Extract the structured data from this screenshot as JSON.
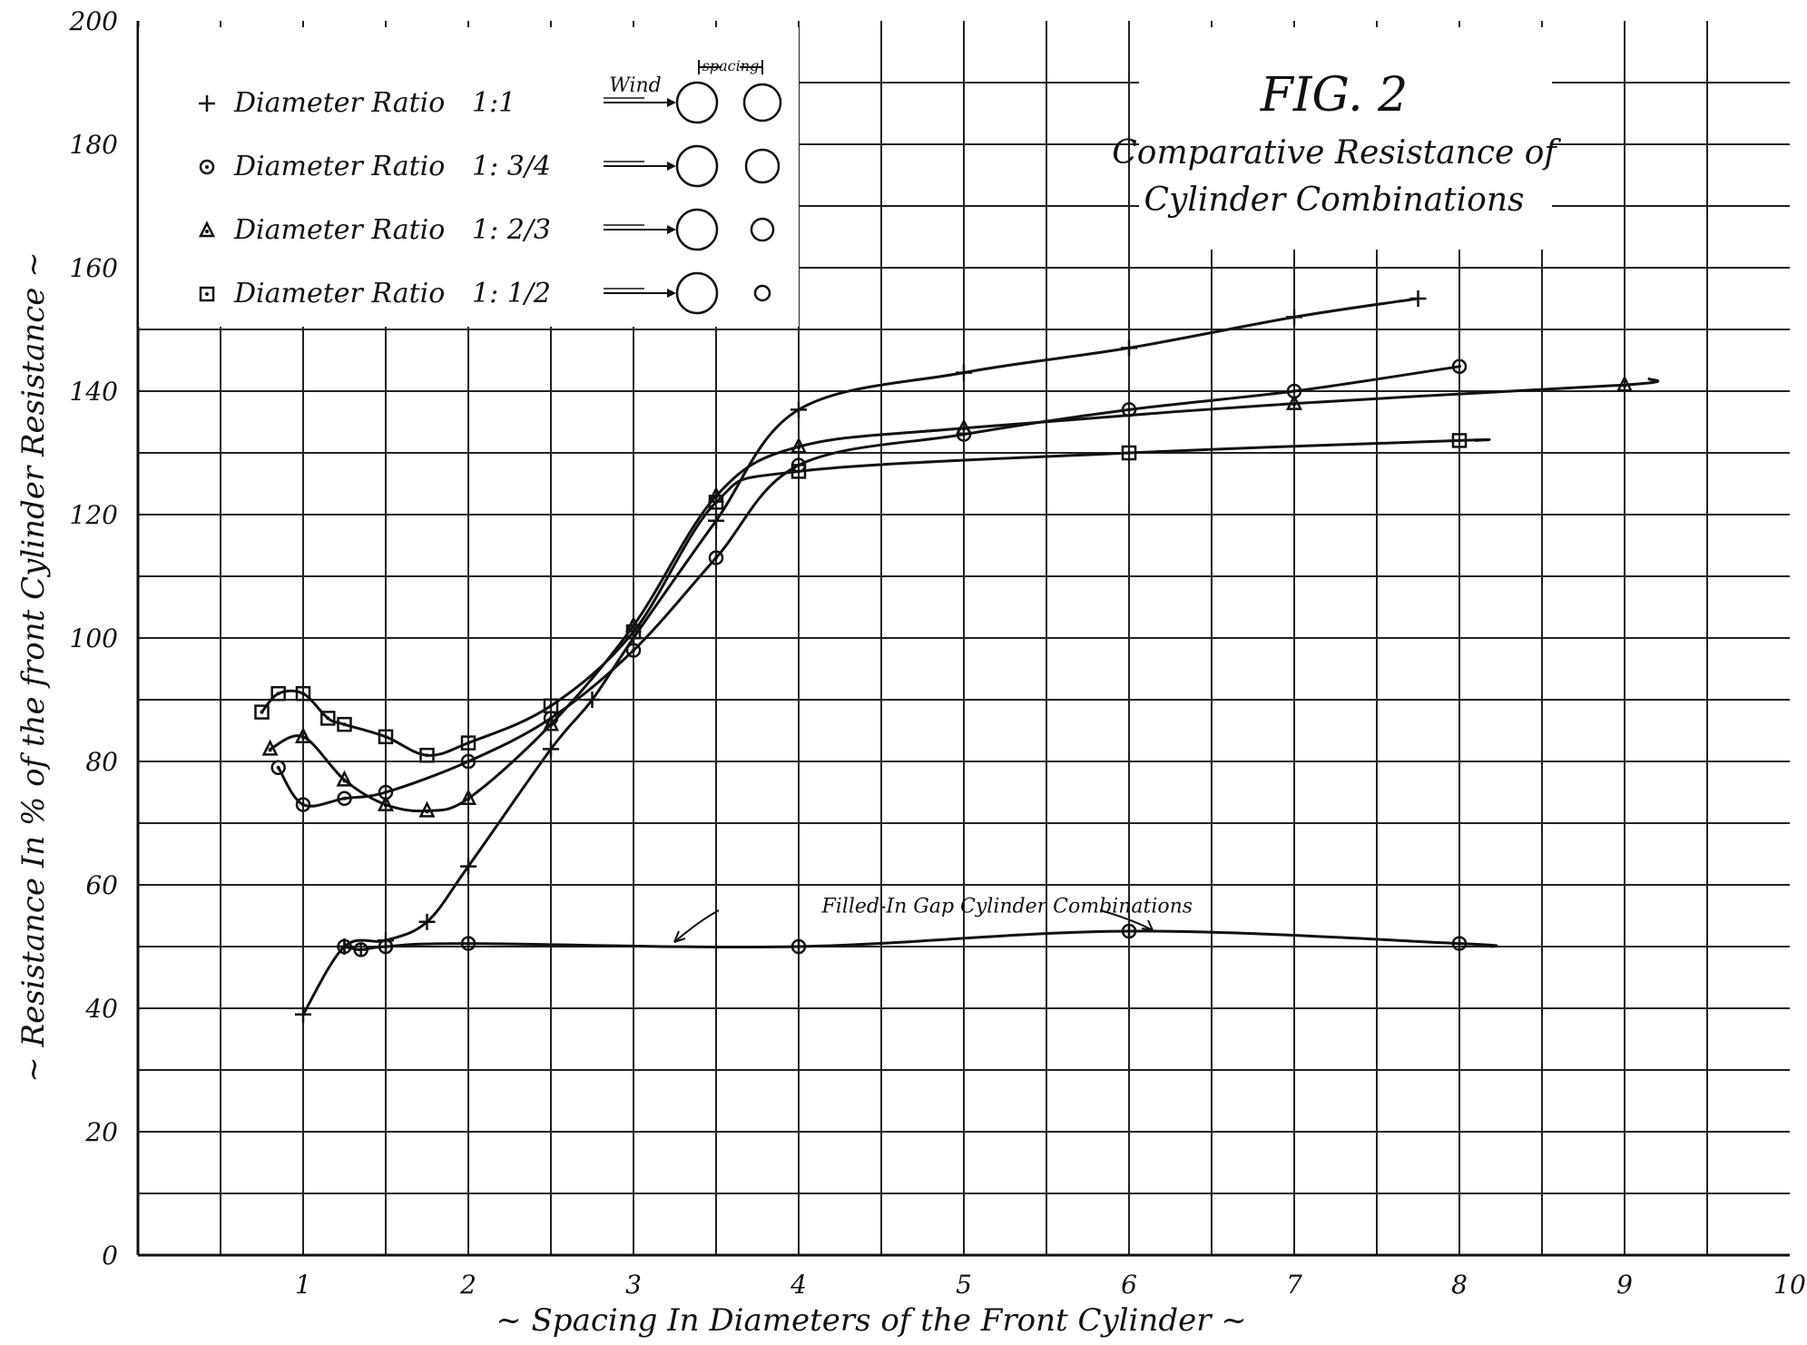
{
  "chart_data": {
    "type": "line",
    "title": "FIG. 2",
    "subtitle_lines": [
      "Comparative Resistance of",
      "Cylinder Combinations"
    ],
    "xlabel": "~ Spacing In Diameters of the Front Cylinder ~",
    "ylabel": "~ Resistance In % of the front Cylinder Resistance ~",
    "xlim": [
      0,
      10
    ],
    "ylim": [
      0,
      200
    ],
    "x_ticks": [
      {
        "value": 1,
        "label": "1"
      },
      {
        "value": 2,
        "label": "2"
      },
      {
        "value": 3,
        "label": "3"
      },
      {
        "value": 4,
        "label": "4"
      },
      {
        "value": 5,
        "label": "5"
      },
      {
        "value": 6,
        "label": "6"
      },
      {
        "value": 7,
        "label": "7"
      },
      {
        "value": 8,
        "label": "8"
      },
      {
        "value": 9,
        "label": "9"
      },
      {
        "value": 10,
        "label": "10"
      }
    ],
    "y_ticks": [
      {
        "value": 0,
        "label": "0"
      },
      {
        "value": 20,
        "label": "20"
      },
      {
        "value": 40,
        "label": "40"
      },
      {
        "value": 60,
        "label": "60"
      },
      {
        "value": 80,
        "label": "80"
      },
      {
        "value": 100,
        "label": "100"
      },
      {
        "value": 120,
        "label": "120"
      },
      {
        "value": 140,
        "label": "140"
      },
      {
        "value": 160,
        "label": "160"
      },
      {
        "value": 180,
        "label": "180"
      },
      {
        "value": 200,
        "label": "200"
      }
    ],
    "grid": true,
    "legend": {
      "placement": "top-left",
      "entries": [
        {
          "symbol": "+",
          "text": "Diameter Ratio",
          "ratio": "1:1"
        },
        {
          "symbol": "⊙",
          "text": "Diameter Ratio",
          "ratio": "1: 3/4"
        },
        {
          "symbol": "▲",
          "text": "Diameter Ratio",
          "ratio": "1: 2/3"
        },
        {
          "symbol": "⊡",
          "text": "Diameter Ratio",
          "ratio": "1: 1/2"
        }
      ],
      "wind_label": "Wind",
      "spacing_label": "spacing"
    },
    "series": [
      {
        "name": "Diameter Ratio 1:1",
        "marker": "plus",
        "x": [
          1.0,
          1.25,
          1.5,
          1.75,
          2.0,
          2.5,
          2.75,
          3.0,
          3.5,
          4.0,
          5.0,
          6.0,
          7.0,
          7.75
        ],
        "y": [
          39,
          50,
          51,
          54,
          63,
          82,
          90,
          100,
          119,
          137,
          143,
          147,
          152,
          155
        ]
      },
      {
        "name": "Diameter Ratio 1: 3/4",
        "marker": "circle",
        "x": [
          0.85,
          1.0,
          1.25,
          1.5,
          2.0,
          2.5,
          3.0,
          3.5,
          4.0,
          5.0,
          6.0,
          7.0,
          8.0
        ],
        "y": [
          79,
          73,
          74,
          75,
          80,
          87,
          98,
          113,
          128,
          133,
          137,
          140,
          144
        ]
      },
      {
        "name": "Diameter Ratio 1: 2/3",
        "marker": "triangle",
        "x": [
          0.8,
          1.0,
          1.25,
          1.5,
          1.75,
          2.0,
          2.5,
          3.0,
          3.5,
          4.0,
          5.0,
          7.0,
          9.0,
          9.15
        ],
        "y": [
          82,
          84,
          77,
          73,
          72,
          74,
          86,
          102,
          123,
          131,
          134,
          138,
          141,
          142
        ]
      },
      {
        "name": "Diameter Ratio 1: 1/2",
        "marker": "square",
        "x": [
          0.75,
          0.85,
          1.0,
          1.15,
          1.25,
          1.5,
          1.75,
          2.0,
          2.5,
          3.0,
          3.5,
          4.0,
          6.0,
          8.0,
          8.1
        ],
        "y": [
          88,
          91,
          91,
          87,
          86,
          84,
          81,
          83,
          89,
          101,
          122,
          127,
          130,
          132,
          132
        ]
      },
      {
        "name": "Filled-In Gap Cylinder Combinations",
        "marker": "circle-plus",
        "x": [
          1.25,
          1.35,
          1.5,
          2.0,
          4.0,
          6.0,
          8.0,
          8.2
        ],
        "y": [
          50,
          49.5,
          50,
          50.5,
          50,
          52.5,
          50.5,
          50
        ]
      }
    ],
    "annotations": [
      {
        "text": "Filled-In Gap Cylinder Combinations",
        "x": 4.25,
        "y": 55.5
      }
    ]
  }
}
